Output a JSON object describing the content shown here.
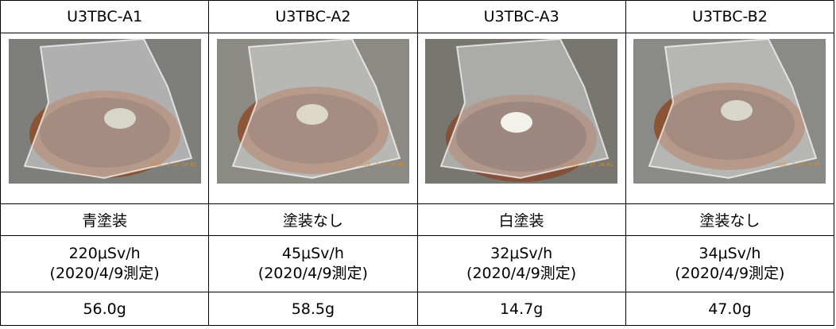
{
  "samples": [
    {
      "id": "U3TBC-A1",
      "coating": "青塗装",
      "dose_rate": "220μSv/h",
      "measured": "(2020/4/9測定)",
      "weight": "56.0g",
      "photo_timestamp": "2020. 2.27 14:01"
    },
    {
      "id": "U3TBC-A2",
      "coating": "塗装なし",
      "dose_rate": "45μSv/h",
      "measured": "(2020/4/9測定)",
      "weight": "58.5g",
      "photo_timestamp": "2020. 2.27 14:00"
    },
    {
      "id": "U3TBC-A3",
      "coating": "白塗装",
      "dose_rate": "32μSv/h",
      "measured": "(2020/4/9測定)",
      "weight": "14.7g",
      "photo_timestamp": "2020. 2.27 14:01"
    },
    {
      "id": "U3TBC-B2",
      "coating": "塗装なし",
      "dose_rate": "34μSv/h",
      "measured": "(2020/4/9測定)",
      "weight": "47.0g",
      "photo_timestamp": "2020. 2.27 14:01"
    }
  ]
}
